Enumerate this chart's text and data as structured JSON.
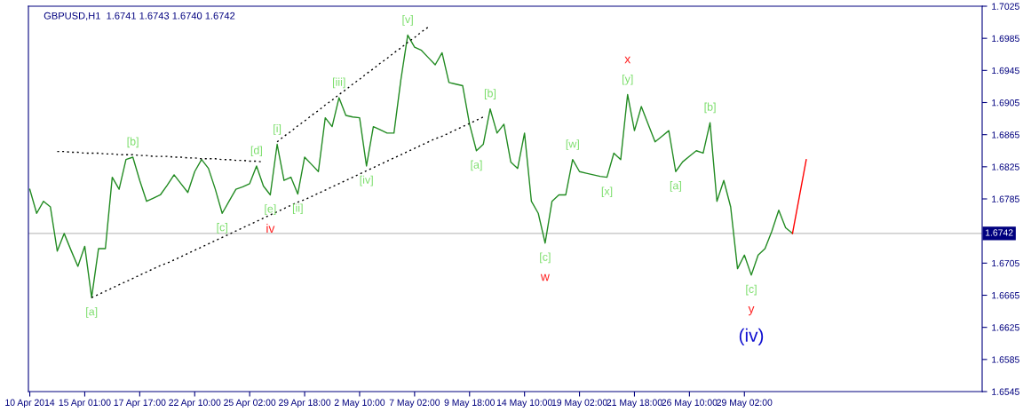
{
  "chart_data": {
    "type": "line",
    "title": "GBPUSD,H1  1.6741 1.6743 1.6740 1.6742",
    "categories": [
      "10 Apr 2014",
      null,
      null,
      null,
      null,
      null,
      null,
      null,
      "15 Apr 01:00",
      null,
      null,
      null,
      null,
      null,
      null,
      null,
      "17 Apr 17:00",
      null,
      null,
      null,
      null,
      null,
      null,
      null,
      "22 Apr 10:00",
      null,
      null,
      null,
      null,
      null,
      null,
      null,
      "25 Apr 02:00",
      null,
      null,
      null,
      null,
      null,
      null,
      null,
      "29 Apr 18:00",
      null,
      null,
      null,
      null,
      null,
      null,
      null,
      "2 May 10:00",
      null,
      null,
      null,
      null,
      null,
      null,
      null,
      "7 May 02:00",
      null,
      null,
      null,
      null,
      null,
      null,
      null,
      "9 May 18:00",
      null,
      null,
      null,
      null,
      null,
      null,
      null,
      "14 May 10:00",
      null,
      null,
      null,
      null,
      null,
      null,
      null,
      "19 May 02:00",
      null,
      null,
      null,
      null,
      null,
      null,
      null,
      "21 May 18:00",
      null,
      null,
      null,
      null,
      null,
      null,
      null,
      "26 May 10:00",
      null,
      null,
      null,
      null,
      null,
      null,
      null,
      "29 May 02:00",
      null,
      null,
      null,
      null,
      null,
      null,
      null,
      null,
      null,
      null,
      null,
      null,
      null,
      null,
      null,
      null,
      null,
      null,
      null,
      null,
      null,
      null,
      null,
      null,
      null,
      null,
      null,
      null,
      null,
      null,
      null,
      null,
      null,
      null
    ],
    "ylim": [
      1.6545,
      1.7025
    ],
    "yticks": [
      1.7025,
      1.6985,
      1.6945,
      1.6905,
      1.6865,
      1.6825,
      1.6785,
      1.6705,
      1.6665,
      1.6625,
      1.6585,
      1.6545
    ],
    "grid": false,
    "marker": "none",
    "series": [
      {
        "color": "#228b22",
        "line_style": "solid",
        "values": [
          1.6797,
          1.6767,
          1.6782,
          1.6775,
          1.672,
          1.6742,
          1.6721,
          1.6701,
          1.6726,
          1.6662,
          1.6723,
          1.6723,
          1.6812,
          1.6797,
          1.6834,
          1.6837,
          1.6808,
          1.6782,
          1.6786,
          1.679,
          1.6802,
          1.6815,
          1.6804,
          1.6793,
          1.6819,
          1.6834,
          1.6823,
          1.6797,
          1.6767,
          1.6782,
          1.6797,
          1.68,
          1.6804,
          1.6826,
          1.6801,
          1.679,
          1.6853,
          1.6808,
          1.6812,
          1.6791,
          1.6837,
          1.6828,
          1.6819,
          1.6886,
          1.6875,
          1.6911,
          1.6889,
          1.6887,
          1.6886,
          1.6826,
          1.6875,
          1.6871,
          1.6867,
          1.6867,
          1.6933,
          1.6989,
          1.6974,
          1.697,
          1.6961,
          1.6952,
          1.6967,
          1.693,
          1.6928,
          1.6926,
          1.6878,
          1.6845,
          1.6853,
          1.6897,
          1.6867,
          1.6878,
          1.6831,
          1.6823,
          1.6867,
          1.6782,
          1.6767,
          1.673,
          1.6782,
          1.679,
          1.679,
          1.6834,
          1.6819,
          1.6817,
          1.6815,
          1.6813,
          1.6812,
          1.6842,
          1.6834,
          1.6915,
          1.687,
          1.69,
          1.6878,
          1.6856,
          1.6863,
          1.687,
          1.6819,
          1.6831,
          1.6838,
          1.6845,
          1.6842,
          1.688,
          1.6782,
          1.6808,
          1.6775,
          1.6698,
          1.6715,
          1.669,
          1.6715,
          1.6723,
          1.6745,
          1.6771,
          1.6749,
          1.6742,
          null,
          null,
          null,
          null,
          null,
          null,
          null,
          null,
          null,
          null,
          null,
          null,
          null,
          null,
          null,
          null,
          null,
          null,
          null,
          null,
          null,
          null,
          null,
          null,
          null,
          null,
          null
        ]
      },
      {
        "color": "#ff0000",
        "line_style": "solid",
        "values": [
          null,
          null,
          null,
          null,
          null,
          null,
          null,
          null,
          null,
          null,
          null,
          null,
          null,
          null,
          null,
          null,
          null,
          null,
          null,
          null,
          null,
          null,
          null,
          null,
          null,
          null,
          null,
          null,
          null,
          null,
          null,
          null,
          null,
          null,
          null,
          null,
          null,
          null,
          null,
          null,
          null,
          null,
          null,
          null,
          null,
          null,
          null,
          null,
          null,
          null,
          null,
          null,
          null,
          null,
          null,
          null,
          null,
          null,
          null,
          null,
          null,
          null,
          null,
          null,
          null,
          null,
          null,
          null,
          null,
          null,
          null,
          null,
          null,
          null,
          null,
          null,
          null,
          null,
          null,
          null,
          null,
          null,
          null,
          null,
          null,
          null,
          null,
          null,
          null,
          null,
          null,
          null,
          null,
          null,
          null,
          null,
          null,
          null,
          null,
          null,
          null,
          null,
          null,
          null,
          null,
          null,
          null,
          null,
          null,
          null,
          null,
          1.6742,
          1.6788,
          1.6834,
          null,
          null,
          null,
          null,
          null,
          null,
          null,
          null,
          null,
          null,
          null,
          null,
          null,
          null,
          null,
          null,
          null,
          null,
          null,
          null,
          null,
          null,
          null,
          null,
          null
        ]
      },
      {
        "color": "#000000",
        "line_style": "dotted",
        "values": [
          null,
          null,
          null,
          null,
          1.6844,
          1.6844,
          1.6843,
          1.6843,
          1.6842,
          1.6842,
          1.6842,
          1.6841,
          1.6841,
          1.684,
          1.684,
          1.684,
          1.6839,
          1.6839,
          1.6838,
          1.6838,
          1.6838,
          1.6837,
          1.6837,
          1.6836,
          1.6836,
          1.6835,
          1.6835,
          1.6835,
          1.6834,
          1.6834,
          1.6833,
          1.6833,
          1.6832,
          1.6832,
          1.6831,
          null,
          null,
          null,
          null,
          null,
          null,
          null,
          null,
          null,
          null,
          null,
          null,
          null,
          null,
          null,
          null,
          null,
          null,
          null,
          null,
          null,
          null,
          null,
          null,
          null,
          null,
          null,
          null,
          null,
          null,
          null,
          null,
          null,
          null,
          null,
          null,
          null,
          null,
          null,
          null,
          null,
          null,
          null,
          null,
          null,
          null,
          null,
          null,
          null,
          null,
          null,
          null,
          null,
          null,
          null,
          null,
          null,
          null,
          null,
          null,
          null,
          null,
          null,
          null,
          null,
          null,
          null,
          null,
          null,
          null,
          null,
          null,
          null,
          null,
          null,
          null,
          null,
          null,
          null,
          null,
          null,
          null,
          null,
          null,
          null,
          null,
          null,
          null,
          null,
          null,
          null,
          null,
          null,
          null,
          null,
          null,
          null,
          null,
          null,
          null,
          null,
          null,
          null,
          null
        ]
      },
      {
        "color": "#000000",
        "line_style": "dotted",
        "values": [
          null,
          null,
          null,
          null,
          null,
          null,
          null,
          null,
          null,
          1.6662,
          1.6666,
          1.667,
          1.6674,
          1.6678,
          1.6682,
          1.6686,
          1.669,
          1.6694,
          1.6698,
          1.6702,
          1.6705,
          1.6709,
          1.6713,
          1.6717,
          1.6721,
          1.6725,
          1.6729,
          1.6733,
          1.6737,
          1.6741,
          1.6745,
          1.6749,
          1.6753,
          1.6757,
          1.6761,
          1.6765,
          1.6769,
          1.6773,
          1.6777,
          1.6781,
          1.6784,
          1.6788,
          1.6792,
          1.6796,
          1.68,
          1.6804,
          1.6808,
          1.6812,
          1.6816,
          1.682,
          1.6824,
          1.6828,
          1.6832,
          1.6836,
          1.684,
          1.6844,
          1.6848,
          1.6852,
          1.6856,
          1.686,
          1.6863,
          1.6867,
          1.6871,
          1.6875,
          1.6879,
          1.6883,
          1.6887,
          null,
          null,
          null,
          null,
          null,
          null,
          null,
          null,
          null,
          null,
          null,
          null,
          null,
          null,
          null,
          null,
          null,
          null,
          null,
          null,
          null,
          null,
          null,
          null,
          null,
          null,
          null,
          null,
          null,
          null,
          null,
          null,
          null,
          null,
          null,
          null,
          null,
          null,
          null,
          null,
          null,
          null,
          null,
          null,
          null,
          null,
          null,
          null,
          null,
          null,
          null,
          null,
          null,
          null,
          null,
          null,
          null,
          null,
          null,
          null,
          null,
          null,
          null,
          null,
          null,
          null,
          null,
          null,
          null,
          null,
          null,
          null
        ]
      },
      {
        "color": "#000000",
        "line_style": "dotted",
        "values": [
          null,
          null,
          null,
          null,
          null,
          null,
          null,
          null,
          null,
          null,
          null,
          null,
          null,
          null,
          null,
          null,
          null,
          null,
          null,
          null,
          null,
          null,
          null,
          null,
          null,
          null,
          null,
          null,
          null,
          null,
          null,
          null,
          null,
          null,
          null,
          null,
          1.6856,
          1.6863,
          1.6869,
          1.6876,
          1.6882,
          1.6889,
          1.6895,
          1.6902,
          1.6908,
          1.6915,
          1.6921,
          1.6928,
          1.6934,
          1.6941,
          1.6947,
          1.6954,
          1.696,
          1.6967,
          1.6973,
          1.698,
          1.6986,
          1.6993,
          1.6999,
          null,
          null,
          null,
          null,
          null,
          null,
          null,
          null,
          null,
          null,
          null,
          null,
          null,
          null,
          null,
          null,
          null,
          null,
          null,
          null,
          null,
          null,
          null,
          null,
          null,
          null,
          null,
          null,
          null,
          null,
          null,
          null,
          null,
          null,
          null,
          null,
          null,
          null,
          null,
          null,
          null,
          null,
          null,
          null,
          null,
          null,
          null,
          null,
          null,
          null,
          null,
          null,
          null,
          null,
          null,
          null,
          null,
          null,
          null,
          null,
          null,
          null,
          null,
          null,
          null,
          null,
          null,
          null,
          null,
          null,
          null,
          null,
          null,
          null,
          null,
          null,
          null,
          null,
          null,
          null
        ]
      }
    ],
    "ref_lines": [
      {
        "axis": "y",
        "value": 1.6742,
        "label": "1.6742",
        "color": "#c0c0c0"
      }
    ],
    "annotations": [
      {
        "text": "[a]",
        "y": 1.6662
      },
      {
        "text": "[b]",
        "y": 1.6837
      },
      {
        "text": "[c]",
        "y": 1.6767
      },
      {
        "text": "[d]",
        "y": 1.6826
      },
      {
        "text": "[e]\niv",
        "y": 1.679
      },
      {
        "text": "[i]",
        "y": 1.6853
      },
      {
        "text": "[ii]",
        "y": 1.6791
      },
      {
        "text": "[iii]",
        "y": 1.6911
      },
      {
        "text": "[iv]",
        "y": 1.6826
      },
      {
        "text": "[v]",
        "y": 1.6989
      },
      {
        "text": "[a]",
        "y": 1.6845
      },
      {
        "text": "[b]",
        "y": 1.6897
      },
      {
        "text": "[c]\nw",
        "y": 1.673
      },
      {
        "text": "[w]",
        "y": 1.6834
      },
      {
        "text": "[x]",
        "y": 1.6812
      },
      {
        "text": "x\n[y]",
        "y": 1.6915
      },
      {
        "text": "[a]",
        "y": 1.6819
      },
      {
        "text": "[b]",
        "y": 1.688
      },
      {
        "text": "[c]\ny\n(iv)",
        "y": 1.669
      }
    ]
  }
}
